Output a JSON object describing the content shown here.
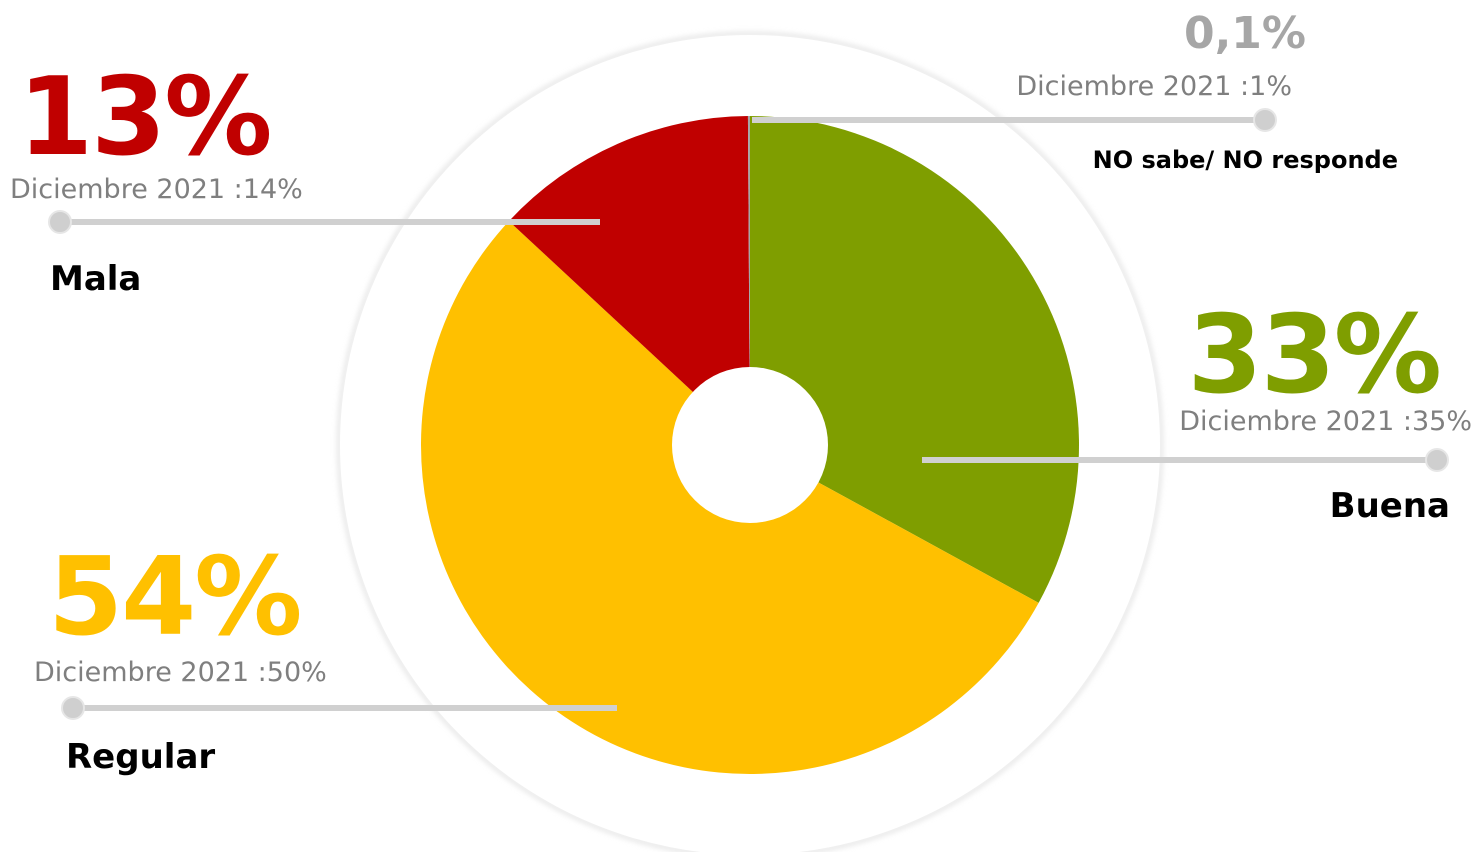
{
  "chart_data": {
    "type": "pie",
    "slices": [
      {
        "label": "Buena",
        "value": 33,
        "value_label": "33%",
        "previous_label": "Diciembre 2021 :35%",
        "color": "#7f9e00"
      },
      {
        "label": "Regular",
        "value": 54,
        "value_label": "54%",
        "previous_label": "Diciembre 2021 :50%",
        "color": "#ffc000"
      },
      {
        "label": "Mala",
        "value": 13,
        "value_label": "13%",
        "previous_label": "Diciembre 2021 :14%",
        "color": "#c00000"
      },
      {
        "label": "NO sabe/ NO responde",
        "value": 0.1,
        "value_label": "0,1%",
        "previous_label": "Diciembre 2021 :1%",
        "color": "#a6a6a6"
      }
    ]
  }
}
